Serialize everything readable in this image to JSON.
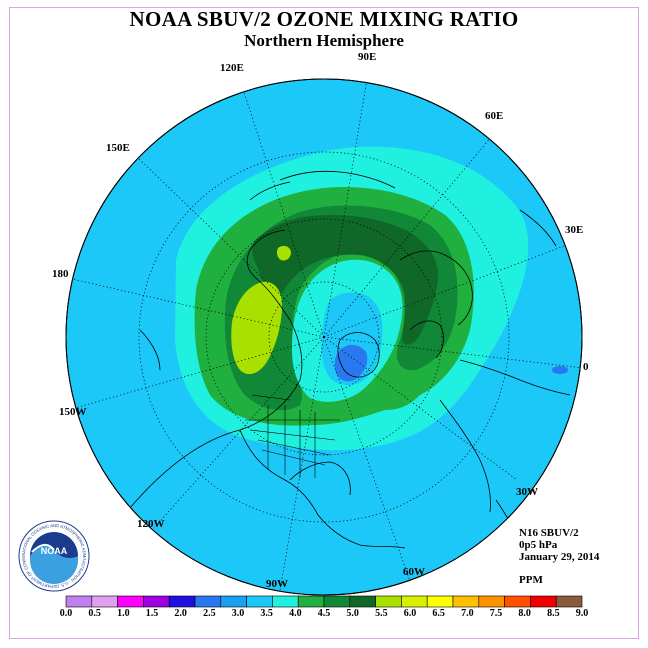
{
  "header": {
    "title": "NOAA SBUV/2 OZONE MIXING RATIO",
    "subtitle": "Northern Hemisphere"
  },
  "map": {
    "projection": "polar-stereographic-north",
    "longitude_labels": {
      "lon_90E": "90E",
      "lon_60E": "60E",
      "lon_30E": "30E",
      "lon_0": "0",
      "lon_30W": "30W",
      "lon_60W": "60W",
      "lon_90W": "90W",
      "lon_120W": "120W",
      "lon_150W": "150W",
      "lon_180": "180",
      "lon_150E": "150E",
      "lon_120E": "120E"
    }
  },
  "info": {
    "instrument": "N16 SBUV/2",
    "level": "0p5 hPa",
    "date": "January 29, 2014",
    "units": "PPM"
  },
  "colorbar": {
    "ticks": [
      "0.0",
      "0.5",
      "1.0",
      "1.5",
      "2.0",
      "2.5",
      "3.0",
      "3.5",
      "4.0",
      "4.5",
      "5.0",
      "5.5",
      "6.0",
      "6.5",
      "7.0",
      "7.5",
      "8.0",
      "8.5",
      "9.0"
    ],
    "colors": [
      "#c080f0",
      "#e0a0f0",
      "#ff00ff",
      "#a000e0",
      "#1e10e0",
      "#2a78f0",
      "#1aa0f0",
      "#1cc8f8",
      "#20f0e0",
      "#20b040",
      "#108838",
      "#106828",
      "#a8e000",
      "#d8f000",
      "#ffff00",
      "#ffc000",
      "#ff9000",
      "#ff5000",
      "#f00000",
      "#8b5a3c"
    ]
  },
  "logo": {
    "text": "NOAA",
    "ring_text": "NATIONAL OCEANIC AND ATMOSPHERIC ADMINISTRATION · U.S. DEPARTMENT OF COMMERCE"
  }
}
